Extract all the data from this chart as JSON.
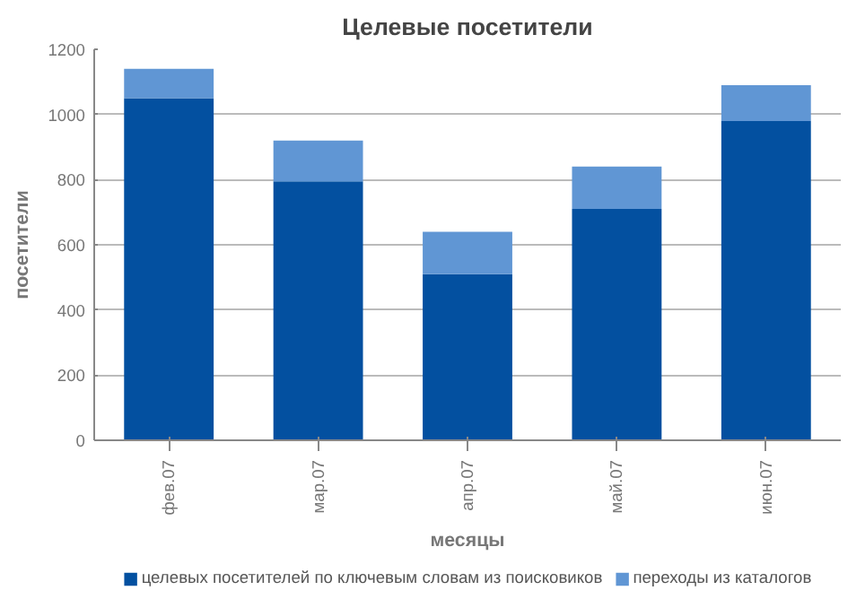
{
  "chart_data": {
    "type": "bar",
    "title": "Целевые посетители",
    "xlabel": "месяцы",
    "ylabel": "посетители",
    "categories": [
      "фев.07",
      "мар.07",
      "апр.07",
      "май.07",
      "июн.07"
    ],
    "stacked": true,
    "series": [
      {
        "name": "целевых посетителей по ключевым словам из поисковиков",
        "color": "#0350a0",
        "values": [
          1050,
          795,
          510,
          710,
          980
        ]
      },
      {
        "name": "переходы из каталогов",
        "color": "#6096d4",
        "values": [
          90,
          125,
          130,
          130,
          110
        ]
      }
    ],
    "ylim": [
      0,
      1200
    ],
    "yticks": [
      0,
      200,
      400,
      600,
      800,
      1000,
      1200
    ],
    "grid": "y",
    "legend": "bottom"
  }
}
